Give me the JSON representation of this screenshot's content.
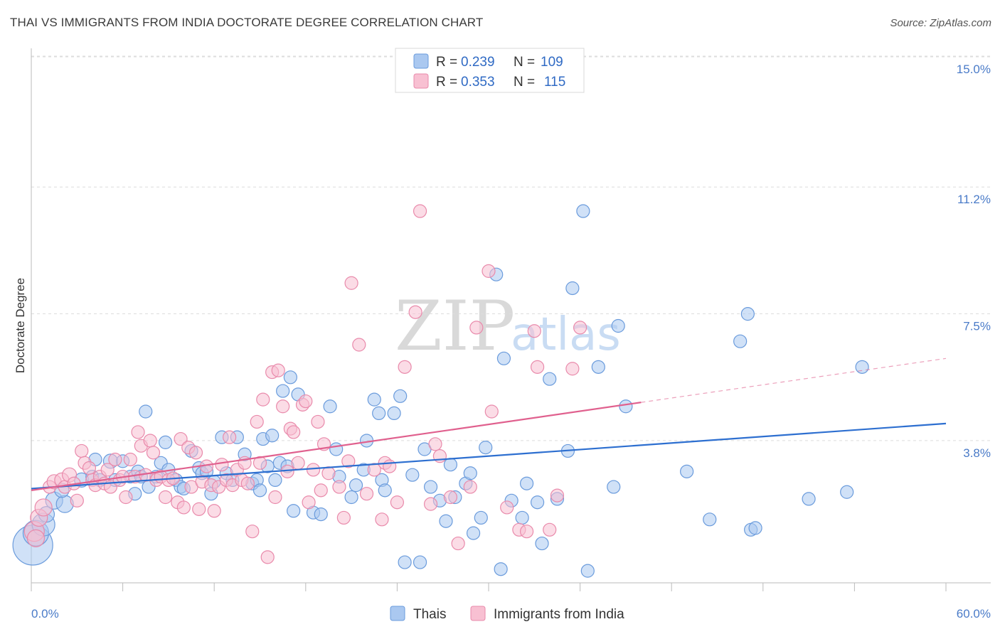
{
  "title": "THAI VS IMMIGRANTS FROM INDIA DOCTORATE DEGREE CORRELATION CHART",
  "source": "Source: ZipAtlas.com",
  "watermark": {
    "zip": "ZIP",
    "atlas": "atlas"
  },
  "chart_data": {
    "type": "scatter",
    "xlabel": "",
    "ylabel": "Doctorate Degree",
    "xlim": [
      0,
      60
    ],
    "ylim": [
      0,
      15
    ],
    "x_tick_labels": {
      "min": "0.0%",
      "max": "60.0%"
    },
    "y_ticks": [
      {
        "value": 3.8,
        "label": "3.8%"
      },
      {
        "value": 7.5,
        "label": "7.5%"
      },
      {
        "value": 11.2,
        "label": "11.2%"
      },
      {
        "value": 15.0,
        "label": "15.0%"
      }
    ],
    "legend": {
      "rows": [
        {
          "r_label": "R = ",
          "r_value": "0.239",
          "n_label": "N = ",
          "n_value": "109"
        },
        {
          "r_label": "R = ",
          "r_value": "0.353",
          "n_label": "N = ",
          "n_value": "115"
        }
      ]
    },
    "colors": {
      "thai_fill": "#aac8f0",
      "thai_stroke": "#6a9bdc",
      "thai_line": "#2d6fd0",
      "india_fill": "#f8c0d2",
      "india_stroke": "#e98aab",
      "india_line": "#e0608e"
    },
    "series": [
      {
        "name": "Thais",
        "trend": {
          "x0": 0,
          "y0": 2.75,
          "x1": 60,
          "y1": 4.65,
          "solid_to": 60
        },
        "points": [
          [
            0.1,
            1.1,
            28
          ],
          [
            0.3,
            1.45,
            18
          ],
          [
            0.8,
            1.7,
            16
          ],
          [
            1.0,
            2.0,
            11
          ],
          [
            1.5,
            2.4,
            12
          ],
          [
            2.2,
            2.3,
            12
          ],
          [
            2.0,
            2.7,
            10
          ],
          [
            3.3,
            3.0,
            10
          ],
          [
            4.0,
            3.1,
            9
          ],
          [
            4.2,
            3.6,
            9
          ],
          [
            4.5,
            3.0,
            9
          ],
          [
            5.2,
            3.55,
            10
          ],
          [
            5.5,
            3.0,
            9
          ],
          [
            6.0,
            3.55,
            9
          ],
          [
            6.5,
            3.1,
            9
          ],
          [
            6.8,
            2.6,
            9
          ],
          [
            7.0,
            3.25,
            9
          ],
          [
            7.2,
            3.1,
            9
          ],
          [
            7.5,
            5.0,
            9
          ],
          [
            7.7,
            2.8,
            9
          ],
          [
            8.2,
            3.1,
            9
          ],
          [
            8.5,
            3.5,
            9
          ],
          [
            8.8,
            4.1,
            9
          ],
          [
            9.0,
            3.3,
            9
          ],
          [
            9.5,
            3.0,
            9
          ],
          [
            9.8,
            2.8,
            9
          ],
          [
            10.0,
            2.75,
            9
          ],
          [
            10.5,
            3.85,
            9
          ],
          [
            11.0,
            3.35,
            9
          ],
          [
            11.2,
            3.2,
            9
          ],
          [
            11.5,
            3.25,
            9
          ],
          [
            11.8,
            2.6,
            9
          ],
          [
            12.0,
            2.95,
            9
          ],
          [
            12.5,
            4.25,
            9
          ],
          [
            12.8,
            3.2,
            9
          ],
          [
            13.2,
            3.0,
            9
          ],
          [
            13.5,
            4.25,
            9
          ],
          [
            14.0,
            3.75,
            9
          ],
          [
            14.5,
            2.9,
            9
          ],
          [
            14.8,
            3.0,
            9
          ],
          [
            15.0,
            2.7,
            9
          ],
          [
            15.2,
            4.2,
            9
          ],
          [
            15.5,
            3.4,
            9
          ],
          [
            15.8,
            4.3,
            9
          ],
          [
            16.0,
            3.0,
            9
          ],
          [
            16.3,
            3.5,
            9
          ],
          [
            16.5,
            5.6,
            9
          ],
          [
            16.8,
            3.4,
            9
          ],
          [
            17.0,
            6.0,
            9
          ],
          [
            17.2,
            2.1,
            9
          ],
          [
            17.5,
            5.5,
            9
          ],
          [
            18.5,
            2.05,
            9
          ],
          [
            19.0,
            2.0,
            9
          ],
          [
            19.6,
            5.15,
            9
          ],
          [
            20.0,
            3.9,
            9
          ],
          [
            20.2,
            3.1,
            9
          ],
          [
            21.0,
            2.5,
            9
          ],
          [
            21.3,
            2.85,
            9
          ],
          [
            21.8,
            3.3,
            9
          ],
          [
            22.0,
            4.15,
            9
          ],
          [
            22.5,
            5.35,
            9
          ],
          [
            22.8,
            4.95,
            9
          ],
          [
            23.0,
            3.0,
            9
          ],
          [
            23.2,
            2.7,
            9
          ],
          [
            23.8,
            4.95,
            9
          ],
          [
            24.2,
            5.45,
            9
          ],
          [
            24.5,
            0.6,
            9
          ],
          [
            25.0,
            3.15,
            9
          ],
          [
            25.5,
            0.6,
            9
          ],
          [
            25.8,
            3.9,
            9
          ],
          [
            26.2,
            2.8,
            9
          ],
          [
            26.8,
            2.4,
            9
          ],
          [
            27.2,
            1.8,
            9
          ],
          [
            27.5,
            3.45,
            9
          ],
          [
            27.8,
            2.5,
            9
          ],
          [
            28.5,
            2.9,
            9
          ],
          [
            28.8,
            3.2,
            9
          ],
          [
            29.0,
            1.45,
            9
          ],
          [
            29.5,
            1.9,
            9
          ],
          [
            29.8,
            3.95,
            9
          ],
          [
            30.5,
            9.0,
            9
          ],
          [
            30.8,
            0.4,
            9
          ],
          [
            31.0,
            6.55,
            9
          ],
          [
            31.5,
            2.4,
            9
          ],
          [
            32.2,
            1.9,
            9
          ],
          [
            32.5,
            2.9,
            9
          ],
          [
            33.2,
            2.35,
            9
          ],
          [
            33.5,
            1.15,
            9
          ],
          [
            34.0,
            5.95,
            9
          ],
          [
            34.5,
            2.45,
            9
          ],
          [
            35.2,
            3.85,
            9
          ],
          [
            35.5,
            8.6,
            9
          ],
          [
            36.2,
            10.85,
            9
          ],
          [
            36.5,
            0.35,
            9
          ],
          [
            37.2,
            6.3,
            9
          ],
          [
            38.2,
            2.8,
            9
          ],
          [
            38.5,
            7.5,
            9
          ],
          [
            39.0,
            5.15,
            9
          ],
          [
            43.0,
            3.25,
            9
          ],
          [
            44.5,
            1.85,
            9
          ],
          [
            46.5,
            7.05,
            9
          ],
          [
            47.0,
            7.85,
            9
          ],
          [
            47.2,
            1.55,
            9
          ],
          [
            47.5,
            1.6,
            9
          ],
          [
            51.0,
            2.45,
            9
          ],
          [
            53.5,
            2.65,
            9
          ],
          [
            54.5,
            6.3,
            9
          ]
        ]
      },
      {
        "name": "Immigrants from India",
        "trend": {
          "x0": 0,
          "y0": 2.7,
          "x1": 60,
          "y1": 6.55,
          "solid_to": 40
        },
        "points": [
          [
            0.2,
            1.5,
            14
          ],
          [
            0.3,
            1.3,
            12
          ],
          [
            0.5,
            1.9,
            12
          ],
          [
            0.8,
            2.2,
            12
          ],
          [
            1.2,
            2.8,
            9
          ],
          [
            1.5,
            2.95,
            10
          ],
          [
            2.0,
            3.0,
            10
          ],
          [
            2.2,
            2.8,
            9
          ],
          [
            2.5,
            3.15,
            10
          ],
          [
            2.8,
            2.9,
            9
          ],
          [
            3.0,
            2.4,
            9
          ],
          [
            3.3,
            3.85,
            9
          ],
          [
            3.5,
            3.5,
            9
          ],
          [
            3.8,
            3.35,
            9
          ],
          [
            4.0,
            3.0,
            9
          ],
          [
            4.2,
            2.85,
            9
          ],
          [
            4.5,
            3.1,
            9
          ],
          [
            4.8,
            2.9,
            9
          ],
          [
            5.0,
            3.3,
            9
          ],
          [
            5.2,
            2.8,
            9
          ],
          [
            5.5,
            3.6,
            9
          ],
          [
            5.8,
            3.0,
            9
          ],
          [
            6.0,
            3.1,
            9
          ],
          [
            6.2,
            2.5,
            9
          ],
          [
            6.5,
            3.6,
            9
          ],
          [
            6.8,
            3.1,
            9
          ],
          [
            7.0,
            4.4,
            9
          ],
          [
            7.2,
            4.0,
            9
          ],
          [
            7.5,
            3.15,
            9
          ],
          [
            7.8,
            4.15,
            9
          ],
          [
            8.0,
            3.8,
            9
          ],
          [
            8.2,
            3.0,
            9
          ],
          [
            8.5,
            3.1,
            9
          ],
          [
            8.8,
            2.5,
            9
          ],
          [
            9.0,
            3.0,
            9
          ],
          [
            9.3,
            3.05,
            9
          ],
          [
            9.6,
            2.35,
            9
          ],
          [
            9.8,
            4.2,
            9
          ],
          [
            10.0,
            2.2,
            9
          ],
          [
            10.3,
            3.95,
            9
          ],
          [
            10.5,
            2.8,
            9
          ],
          [
            10.8,
            3.8,
            9
          ],
          [
            11.0,
            2.15,
            9
          ],
          [
            11.2,
            2.95,
            9
          ],
          [
            11.5,
            3.4,
            9
          ],
          [
            11.8,
            2.85,
            9
          ],
          [
            12.0,
            2.1,
            9
          ],
          [
            12.3,
            2.8,
            9
          ],
          [
            12.5,
            3.45,
            9
          ],
          [
            12.8,
            3.0,
            9
          ],
          [
            13.0,
            4.25,
            9
          ],
          [
            13.2,
            2.85,
            9
          ],
          [
            13.5,
            3.3,
            9
          ],
          [
            13.8,
            3.0,
            9
          ],
          [
            14.0,
            3.5,
            9
          ],
          [
            14.2,
            2.9,
            9
          ],
          [
            14.5,
            1.5,
            9
          ],
          [
            14.8,
            4.7,
            9
          ],
          [
            15.0,
            3.5,
            9
          ],
          [
            15.2,
            5.35,
            9
          ],
          [
            15.5,
            0.75,
            9
          ],
          [
            15.8,
            6.15,
            9
          ],
          [
            16.0,
            2.5,
            9
          ],
          [
            16.2,
            6.2,
            9
          ],
          [
            16.5,
            5.15,
            9
          ],
          [
            16.8,
            3.25,
            9
          ],
          [
            17.0,
            4.5,
            9
          ],
          [
            17.2,
            4.4,
            9
          ],
          [
            17.5,
            3.5,
            9
          ],
          [
            17.8,
            5.2,
            9
          ],
          [
            18.0,
            5.3,
            9
          ],
          [
            18.2,
            2.35,
            9
          ],
          [
            18.5,
            3.3,
            9
          ],
          [
            18.8,
            4.7,
            9
          ],
          [
            19.0,
            2.7,
            9
          ],
          [
            19.2,
            4.05,
            9
          ],
          [
            19.5,
            3.2,
            9
          ],
          [
            20.2,
            2.8,
            9
          ],
          [
            20.5,
            1.9,
            9
          ],
          [
            20.8,
            3.55,
            9
          ],
          [
            21.0,
            8.75,
            9
          ],
          [
            21.5,
            6.95,
            9
          ],
          [
            22.0,
            2.6,
            9
          ],
          [
            22.5,
            3.3,
            9
          ],
          [
            23.0,
            1.85,
            9
          ],
          [
            23.2,
            3.5,
            9
          ],
          [
            23.5,
            3.4,
            9
          ],
          [
            24.0,
            2.35,
            9
          ],
          [
            24.5,
            6.3,
            9
          ],
          [
            25.2,
            7.9,
            9
          ],
          [
            25.5,
            10.85,
            9
          ],
          [
            26.2,
            2.3,
            9
          ],
          [
            26.5,
            4.05,
            9
          ],
          [
            26.8,
            3.7,
            9
          ],
          [
            27.5,
            2.5,
            9
          ],
          [
            28.0,
            1.15,
            9
          ],
          [
            28.8,
            2.8,
            9
          ],
          [
            29.2,
            7.45,
            9
          ],
          [
            30.0,
            9.1,
            9
          ],
          [
            30.2,
            5.0,
            9
          ],
          [
            31.2,
            2.2,
            9
          ],
          [
            32.0,
            1.55,
            9
          ],
          [
            32.5,
            1.5,
            9
          ],
          [
            33.0,
            7.35,
            9
          ],
          [
            33.2,
            6.3,
            9
          ],
          [
            34.0,
            1.55,
            9
          ],
          [
            34.5,
            2.55,
            9
          ],
          [
            35.5,
            6.25,
            9
          ],
          [
            36.0,
            7.45,
            9
          ]
        ]
      }
    ]
  }
}
